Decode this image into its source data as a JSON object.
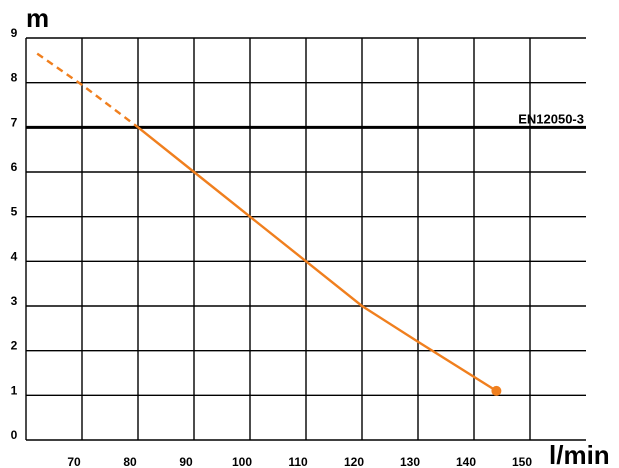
{
  "chart_data": {
    "type": "line",
    "title": "",
    "xlabel": "l/min",
    "ylabel": "m",
    "xlim": [
      60,
      160
    ],
    "ylim": [
      0,
      9
    ],
    "x_ticks": [
      70,
      80,
      90,
      100,
      110,
      120,
      130,
      140,
      150
    ],
    "y_ticks": [
      0,
      1,
      2,
      3,
      4,
      5,
      6,
      7,
      8,
      9
    ],
    "grid": true,
    "series": [
      {
        "color": "#f07f1e",
        "dashed_segment": {
          "x": [
            62,
            70,
            80
          ],
          "y": [
            8.65,
            7.95,
            7.0
          ]
        },
        "solid_segment": {
          "x": [
            80,
            90,
            100,
            110,
            120,
            130,
            144
          ],
          "y": [
            7.0,
            6.0,
            5.0,
            4.0,
            3.0,
            2.2,
            1.1
          ]
        },
        "end_marker": {
          "x": 144,
          "y": 1.1
        }
      }
    ],
    "reference_line": {
      "label": "EN12050-3",
      "y": 7
    }
  }
}
